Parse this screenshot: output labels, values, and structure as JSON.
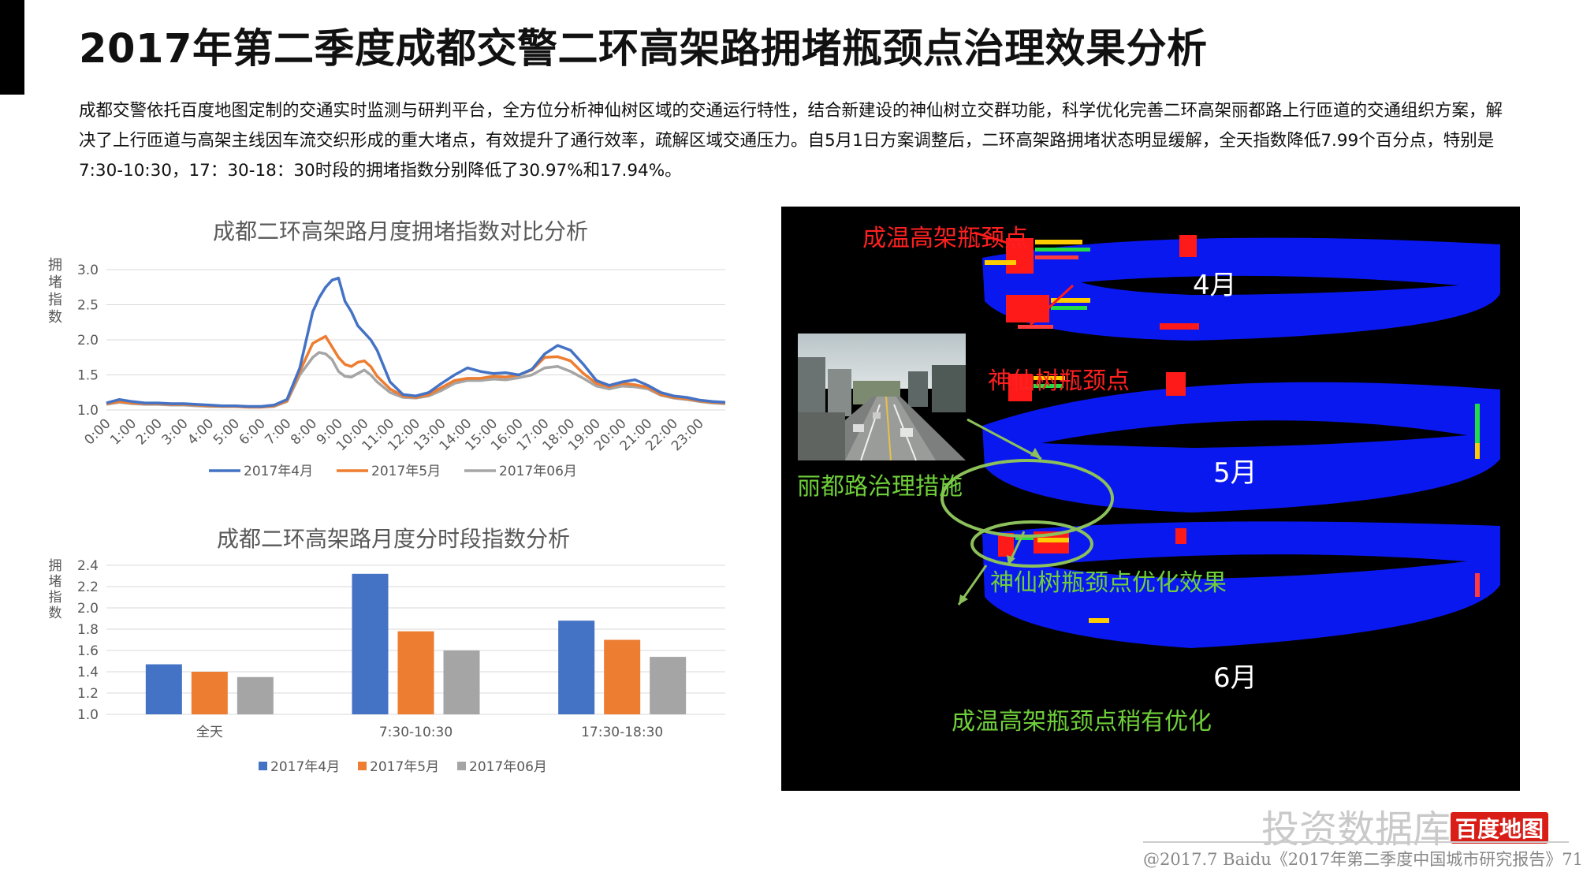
{
  "page": {
    "title": "2017年第二季度成都交警二环高架路拥堵瓶颈点治理效果分析",
    "intro": "成都交警依托百度地图定制的交通实时监测与研判平台，全方位分析神仙树区域的交通运行特性，结合新建设的神仙树立交群功能，科学优化完善二环高架丽都路上行匝道的交通组织方案，解决了上行匝道与高架主线因车流交织形成的重大堵点，有效提升了通行效率，疏解区域交通压力。自5月1日方案调整后，二环高架路拥堵状态明显缓解，全天指数降低7.99个百分点，特别是7:30-10:30，17：30-18：30时段的拥堵指数分别降低了30.97%和17.94%。"
  },
  "chart_data": [
    {
      "type": "line",
      "title": "成都二环高架路月度拥堵指数对比分析",
      "ylabel": "拥堵指数",
      "ylim": [
        1.0,
        3.0
      ],
      "yticks": [
        "1.0",
        "1.5",
        "2.0",
        "2.5",
        "3.0"
      ],
      "categories": [
        "0:00",
        "1:00",
        "2:00",
        "3:00",
        "4:00",
        "5:00",
        "6:00",
        "7:00",
        "8:00",
        "9:00",
        "10:00",
        "11:00",
        "12:00",
        "13:00",
        "14:00",
        "15:00",
        "16:00",
        "17:00",
        "18:00",
        "19:00",
        "20:00",
        "21:00",
        "22:00",
        "23:00"
      ],
      "x": [
        0,
        0.5,
        1,
        1.5,
        2,
        2.5,
        3,
        3.5,
        4,
        4.5,
        5,
        5.5,
        6,
        6.5,
        7,
        7.5,
        8,
        8.25,
        8.5,
        8.75,
        9,
        9.25,
        9.5,
        9.75,
        10,
        10.25,
        10.5,
        11,
        11.5,
        12,
        12.5,
        13,
        13.5,
        14,
        14.5,
        15,
        15.5,
        16,
        16.5,
        17,
        17.5,
        18,
        18.5,
        19,
        19.5,
        20,
        20.5,
        21,
        21.5,
        22,
        22.5,
        23,
        23.5,
        24
      ],
      "series": [
        {
          "name": "2017年4月",
          "color": "#4472c4",
          "values": [
            1.1,
            1.15,
            1.12,
            1.1,
            1.1,
            1.09,
            1.09,
            1.08,
            1.07,
            1.06,
            1.06,
            1.05,
            1.05,
            1.07,
            1.15,
            1.6,
            2.4,
            2.6,
            2.75,
            2.85,
            2.88,
            2.55,
            2.4,
            2.2,
            2.1,
            2.0,
            1.85,
            1.4,
            1.22,
            1.2,
            1.25,
            1.38,
            1.5,
            1.6,
            1.55,
            1.52,
            1.53,
            1.5,
            1.58,
            1.8,
            1.92,
            1.85,
            1.65,
            1.42,
            1.35,
            1.4,
            1.43,
            1.35,
            1.25,
            1.2,
            1.18,
            1.14,
            1.12,
            1.11
          ]
        },
        {
          "name": "2017年5月",
          "color": "#ed7d31",
          "values": [
            1.09,
            1.12,
            1.1,
            1.09,
            1.09,
            1.08,
            1.08,
            1.07,
            1.06,
            1.05,
            1.05,
            1.04,
            1.04,
            1.06,
            1.13,
            1.55,
            1.95,
            2.0,
            2.05,
            1.9,
            1.75,
            1.65,
            1.62,
            1.68,
            1.7,
            1.62,
            1.48,
            1.3,
            1.2,
            1.18,
            1.22,
            1.32,
            1.42,
            1.45,
            1.45,
            1.48,
            1.47,
            1.5,
            1.57,
            1.75,
            1.76,
            1.7,
            1.52,
            1.38,
            1.33,
            1.38,
            1.36,
            1.32,
            1.22,
            1.18,
            1.16,
            1.13,
            1.11,
            1.1
          ]
        },
        {
          "name": "2017年06月",
          "color": "#a5a5a5",
          "values": [
            1.08,
            1.11,
            1.09,
            1.08,
            1.08,
            1.07,
            1.07,
            1.06,
            1.05,
            1.05,
            1.05,
            1.04,
            1.04,
            1.05,
            1.12,
            1.5,
            1.75,
            1.82,
            1.8,
            1.72,
            1.55,
            1.48,
            1.47,
            1.52,
            1.57,
            1.5,
            1.4,
            1.25,
            1.18,
            1.17,
            1.2,
            1.28,
            1.38,
            1.42,
            1.42,
            1.44,
            1.43,
            1.46,
            1.5,
            1.6,
            1.62,
            1.55,
            1.45,
            1.34,
            1.3,
            1.34,
            1.33,
            1.3,
            1.21,
            1.17,
            1.15,
            1.12,
            1.1,
            1.09
          ]
        }
      ],
      "grid": true,
      "legend": "bottom"
    },
    {
      "type": "bar",
      "title": "成都二环高架路月度分时段指数分析",
      "ylabel": "拥堵指数",
      "ylim": [
        1.0,
        2.4
      ],
      "yticks": [
        "1.0",
        "1.2",
        "1.4",
        "1.6",
        "1.8",
        "2.0",
        "2.2",
        "2.4"
      ],
      "categories": [
        "全天",
        "7:30-10:30",
        "17:30-18:30"
      ],
      "series": [
        {
          "name": "2017年4月",
          "color": "#4472c4",
          "values": [
            1.47,
            2.32,
            1.88
          ]
        },
        {
          "name": "2017年5月",
          "color": "#ed7d31",
          "values": [
            1.4,
            1.78,
            1.7
          ]
        },
        {
          "name": "2017年06月",
          "color": "#a5a5a5",
          "values": [
            1.35,
            1.6,
            1.54
          ]
        }
      ],
      "grid": true,
      "legend": "bottom"
    }
  ],
  "viz": {
    "labels": {
      "chengwen": "成温高架瓶颈点",
      "shenxianshu": "神仙树瓶颈点",
      "lidu": "丽都路治理措施",
      "effect": "神仙树瓶颈点优化效果",
      "chengwen_opt": "成温高架瓶颈点稍有优化"
    },
    "months": [
      "4月",
      "5月",
      "6月"
    ],
    "colors": {
      "red_label": "#ff2020",
      "green_label": "#6fcf3a",
      "ring": "#0a18f0"
    }
  },
  "footer": {
    "brand": "投资数据库",
    "logo": "百度地图",
    "source": "@2017.7 Baidu《2017年第二季度中国城市研究报告》71"
  }
}
